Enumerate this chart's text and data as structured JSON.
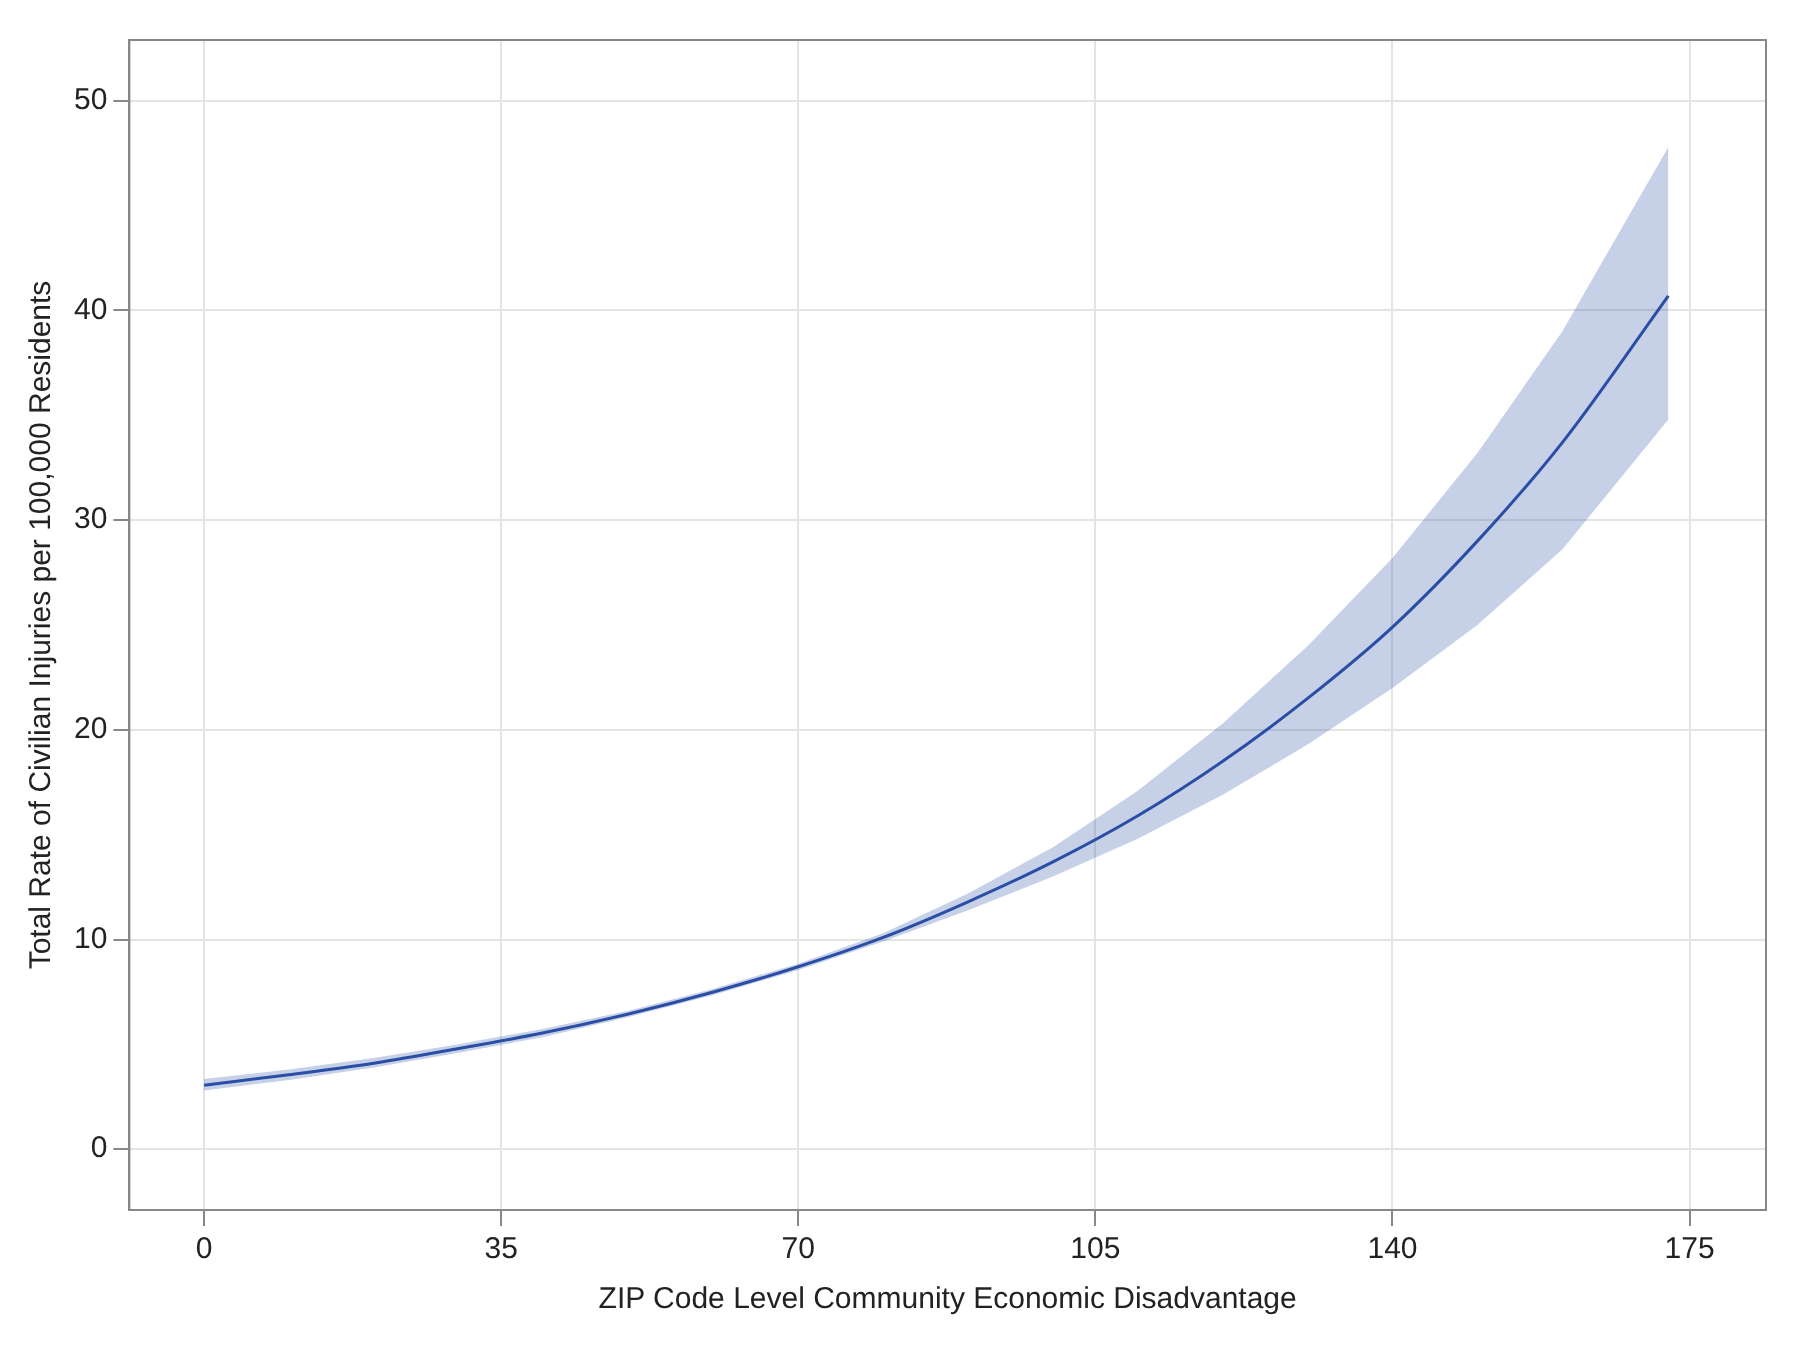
{
  "chart_data": {
    "type": "line",
    "xlabel": "ZIP Code Level Community Economic Disadvantage",
    "ylabel": "Total Rate of Civilian Injuries per 100,000 Residents",
    "x": [
      0,
      10,
      20,
      30,
      40,
      50,
      60,
      70,
      80,
      90,
      100,
      110,
      120,
      130,
      140,
      150,
      160,
      172.5
    ],
    "series": [
      {
        "color": "#2b4ea6",
        "values": [
          3.05,
          3.55,
          4.1,
          4.8,
          5.55,
          6.45,
          7.5,
          8.7,
          10.1,
          11.8,
          13.7,
          15.9,
          18.5,
          21.5,
          24.9,
          29.0,
          33.7,
          40.7
        ],
        "lower": [
          2.8,
          3.3,
          3.9,
          4.6,
          5.35,
          6.3,
          7.35,
          8.55,
          9.9,
          11.4,
          13.0,
          14.8,
          16.9,
          19.3,
          22.0,
          25.0,
          28.6,
          34.8
        ],
        "upper": [
          3.35,
          3.8,
          4.35,
          5.0,
          5.75,
          6.6,
          7.65,
          8.85,
          10.3,
          12.2,
          14.4,
          17.1,
          20.3,
          24.0,
          28.2,
          33.2,
          39.0,
          47.8
        ]
      }
    ],
    "xlim": [
      -8.8,
      184
    ],
    "xticks": [
      0,
      35,
      70,
      105,
      140,
      175
    ],
    "ylim": [
      -2.9,
      52.9
    ],
    "yticks": [
      0,
      10,
      20,
      30,
      40,
      50
    ],
    "grid": true,
    "marker": "none",
    "line_style": "solid"
  }
}
